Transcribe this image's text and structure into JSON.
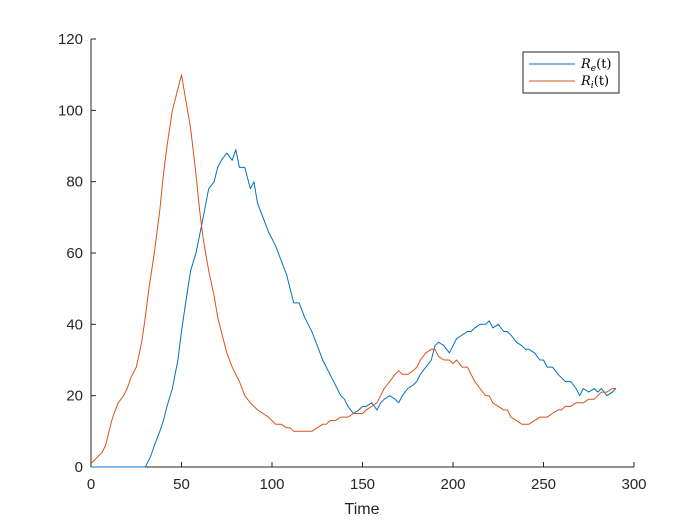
{
  "chart_data": {
    "type": "line",
    "xlabel": "Time",
    "ylabel": "",
    "title": "",
    "xlim": [
      0,
      300
    ],
    "ylim": [
      0,
      120
    ],
    "x_ticks": [
      "0",
      "50",
      "100",
      "150",
      "200",
      "250",
      "300"
    ],
    "y_ticks": [
      "0",
      "20",
      "40",
      "60",
      "80",
      "100",
      "120"
    ],
    "grid": false,
    "legend_position": "top-right",
    "series": [
      {
        "name": "Re(t)",
        "name_main": "R",
        "name_sub": "e",
        "name_tail": "(t)",
        "color": "#0072bd",
        "x": [
          0,
          10,
          20,
          30,
          31,
          33,
          35,
          38,
          40,
          42,
          45,
          48,
          50,
          52,
          55,
          58,
          60,
          62,
          65,
          68,
          70,
          72,
          75,
          78,
          80,
          82,
          85,
          88,
          90,
          92,
          95,
          98,
          100,
          102,
          105,
          108,
          110,
          112,
          115,
          118,
          120,
          122,
          125,
          128,
          130,
          132,
          135,
          138,
          140,
          142,
          145,
          148,
          150,
          152,
          155,
          158,
          160,
          162,
          165,
          168,
          170,
          172,
          175,
          178,
          180,
          182,
          185,
          188,
          190,
          192,
          195,
          198,
          200,
          202,
          205,
          208,
          210,
          212,
          215,
          218,
          220,
          222,
          225,
          228,
          230,
          232,
          235,
          238,
          240,
          242,
          245,
          248,
          250,
          252,
          255,
          258,
          260,
          262,
          265,
          268,
          270,
          272,
          275,
          278,
          280,
          282,
          285,
          288,
          290
        ],
        "y": [
          0,
          0,
          0,
          0,
          1,
          3,
          6,
          10,
          13,
          17,
          22,
          30,
          38,
          45,
          55,
          60,
          65,
          70,
          78,
          80,
          84,
          86,
          88,
          86,
          89,
          84,
          84,
          78,
          80,
          74,
          70,
          66,
          64,
          62,
          58,
          54,
          50,
          46,
          46,
          42,
          40,
          38,
          34,
          30,
          28,
          26,
          23,
          20,
          19,
          17,
          15,
          16,
          17,
          17,
          18,
          16,
          18,
          19,
          20,
          19,
          18,
          20,
          22,
          23,
          24,
          26,
          28,
          30,
          34,
          35,
          34,
          32,
          34,
          36,
          37,
          38,
          38,
          39,
          40,
          40,
          41,
          39,
          40,
          38,
          38,
          37,
          35,
          34,
          33,
          33,
          32,
          30,
          30,
          28,
          28,
          26,
          25,
          24,
          24,
          22,
          20,
          22,
          21,
          22,
          21,
          22,
          20,
          21,
          22
        ]
      },
      {
        "name": "Ri(t)",
        "name_main": "R",
        "name_sub": "i",
        "name_tail": "(t)",
        "color": "#d95319",
        "x": [
          0,
          2,
          4,
          6,
          8,
          10,
          12,
          15,
          18,
          20,
          22,
          25,
          28,
          30,
          32,
          35,
          38,
          40,
          42,
          45,
          48,
          50,
          52,
          55,
          58,
          60,
          62,
          65,
          68,
          70,
          72,
          75,
          78,
          80,
          82,
          85,
          88,
          90,
          92,
          95,
          98,
          100,
          102,
          105,
          108,
          110,
          112,
          115,
          118,
          120,
          122,
          125,
          128,
          130,
          132,
          135,
          138,
          140,
          142,
          145,
          148,
          150,
          152,
          155,
          158,
          160,
          162,
          165,
          168,
          170,
          172,
          175,
          178,
          180,
          182,
          185,
          188,
          190,
          192,
          195,
          198,
          200,
          202,
          205,
          208,
          210,
          212,
          215,
          218,
          220,
          222,
          225,
          228,
          230,
          232,
          235,
          238,
          240,
          242,
          245,
          248,
          250,
          252,
          255,
          258,
          260,
          262,
          265,
          268,
          270,
          272,
          275,
          278,
          280,
          282,
          285,
          288,
          290
        ],
        "y": [
          1,
          2,
          3,
          4,
          6,
          10,
          14,
          18,
          20,
          22,
          25,
          28,
          35,
          42,
          50,
          60,
          72,
          82,
          90,
          100,
          106,
          110,
          104,
          95,
          82,
          72,
          64,
          55,
          48,
          42,
          38,
          32,
          28,
          26,
          24,
          20,
          18,
          17,
          16,
          15,
          14,
          13,
          12,
          12,
          11,
          11,
          10,
          10,
          10,
          10,
          10,
          11,
          12,
          12,
          13,
          13,
          14,
          14,
          14,
          15,
          15,
          15,
          16,
          17,
          18,
          20,
          22,
          24,
          26,
          27,
          26,
          26,
          27,
          28,
          30,
          32,
          33,
          33,
          31,
          30,
          30,
          29,
          30,
          28,
          28,
          26,
          24,
          22,
          20,
          20,
          18,
          17,
          16,
          16,
          14,
          13,
          12,
          12,
          12,
          13,
          14,
          14,
          14,
          15,
          16,
          16,
          17,
          17,
          18,
          18,
          18,
          19,
          19,
          20,
          21,
          21,
          22,
          22
        ]
      }
    ]
  }
}
